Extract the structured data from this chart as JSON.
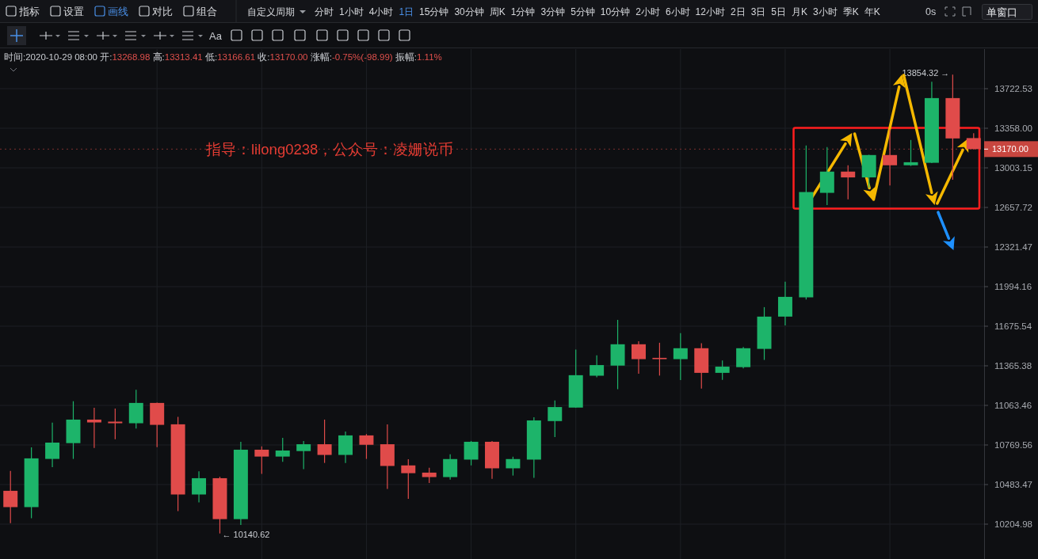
{
  "chart_data": {
    "type": "candlestick",
    "subtitle": "时间:2020-10-29 08:00 开:13268.98 高:13313.41 低:13166.61 收:13170.00 涨幅:-0.75%(-98.99) 振幅:1.11%",
    "categories": [
      null,
      null,
      null,
      null,
      null,
      null,
      null,
      null,
      null,
      null,
      null,
      null,
      null,
      null,
      null,
      null,
      null,
      null,
      null,
      null,
      null,
      null,
      null,
      null,
      null,
      null,
      null,
      null,
      null,
      null,
      null,
      null,
      null,
      null,
      null,
      null,
      null,
      null,
      null,
      null,
      null,
      null,
      null,
      null,
      null,
      null,
      null
    ],
    "ohlc": [
      [
        10439,
        10581,
        10212,
        10324
      ],
      [
        10324,
        10752,
        10246,
        10672
      ],
      [
        10668,
        10934,
        10609,
        10787
      ],
      [
        10783,
        11095,
        10668,
        10957
      ],
      [
        10957,
        11046,
        10748,
        10936
      ],
      [
        10942,
        11040,
        10812,
        10930
      ],
      [
        10930,
        11182,
        10891,
        11082
      ],
      [
        11082,
        11085,
        10754,
        10918
      ],
      [
        10922,
        10977,
        10296,
        10413
      ],
      [
        10413,
        10579,
        10357,
        10529
      ],
      [
        10529,
        10539,
        10140.62,
        10240
      ],
      [
        10240,
        10793,
        10199,
        10735
      ],
      [
        10735,
        10760,
        10560,
        10685
      ],
      [
        10685,
        10822,
        10647,
        10729
      ],
      [
        10725,
        10799,
        10594,
        10775
      ],
      [
        10775,
        10957,
        10639,
        10697
      ],
      [
        10697,
        10868,
        10639,
        10840
      ],
      [
        10840,
        10850,
        10668,
        10771
      ],
      [
        10775,
        10922,
        10452,
        10617
      ],
      [
        10621,
        10666,
        10383,
        10565
      ],
      [
        10569,
        10604,
        10495,
        10537
      ],
      [
        10537,
        10701,
        10519,
        10667
      ],
      [
        10663,
        10799,
        10621,
        10793
      ],
      [
        10793,
        10799,
        10525,
        10600
      ],
      [
        10600,
        10684,
        10548,
        10667
      ],
      [
        10663,
        10975,
        10531,
        10951
      ],
      [
        10946,
        11100,
        10828,
        11051
      ],
      [
        11047,
        11491,
        11045,
        11293
      ],
      [
        11289,
        11446,
        11277,
        11371
      ],
      [
        11367,
        11726,
        11186,
        11533
      ],
      [
        11533,
        11557,
        11305,
        11417
      ],
      [
        11427,
        11545,
        11290,
        11417
      ],
      [
        11417,
        11620,
        11255,
        11502
      ],
      [
        11502,
        11541,
        11190,
        11311
      ],
      [
        11311,
        11407,
        11257,
        11359
      ],
      [
        11355,
        11512,
        11345,
        11502
      ],
      [
        11497,
        11828,
        11411,
        11752
      ],
      [
        11752,
        12035,
        11682,
        11911
      ],
      [
        11907,
        13202,
        11890,
        12791
      ],
      [
        12784,
        13188,
        12678,
        12970
      ],
      [
        12970,
        13026,
        12727,
        12919
      ],
      [
        12919,
        13120,
        12829,
        13117
      ],
      [
        13117,
        13349,
        12849,
        13026
      ],
      [
        13026,
        13252,
        13020,
        13053
      ],
      [
        13048,
        13787,
        13045,
        13635
      ],
      [
        13635,
        13854.32,
        12898,
        13266
      ],
      [
        13268.98,
        13313.41,
        13166.61,
        13170.0
      ]
    ],
    "colors": [
      "#e04b4a",
      "#1db46a",
      "#1db46a",
      "#1db46a",
      "#e04b4a",
      "#e04b4a",
      "#1db46a",
      "#e04b4a",
      "#e04b4a",
      "#1db46a",
      "#e04b4a",
      "#1db46a",
      "#e04b4a",
      "#1db46a",
      "#1db46a",
      "#e04b4a",
      "#1db46a",
      "#e04b4a",
      "#e04b4a",
      "#e04b4a",
      "#e04b4a",
      "#1db46a",
      "#1db46a",
      "#e04b4a",
      "#1db46a",
      "#1db46a",
      "#1db46a",
      "#1db46a",
      "#1db46a",
      "#1db46a",
      "#e04b4a",
      "#e04b4a",
      "#1db46a",
      "#e04b4a",
      "#1db46a",
      "#1db46a",
      "#1db46a",
      "#1db46a",
      "#1db46a",
      "#1db46a",
      "#e04b4a",
      "#1db46a",
      "#e04b4a",
      "#1db46a",
      "#1db46a",
      "#e04b4a",
      "#e04b4a"
    ],
    "log": true,
    "ylim": [
      9966,
      14097
    ],
    "yticks": [
      {
        "value": 10204.98,
        "label": "10204.98"
      },
      {
        "value": 10483.47,
        "label": "10483.47"
      },
      {
        "value": 10769.56,
        "label": "10769.56"
      },
      {
        "value": 11063.46,
        "label": "11063.46"
      },
      {
        "value": 11365.38,
        "label": "11365.38"
      },
      {
        "value": 11675.54,
        "label": "11675.54"
      },
      {
        "value": 11994.16,
        "label": "11994.16"
      },
      {
        "value": 12321.47,
        "label": "12321.47"
      },
      {
        "value": 12657.72,
        "label": "12657.72"
      },
      {
        "value": 13003.15,
        "label": "13003.15"
      },
      {
        "value": 13358.0,
        "label": "13358.00"
      },
      {
        "value": 13722.53,
        "label": "13722.53"
      }
    ],
    "grid": true,
    "tick_labels": "y",
    "ref_lines": [
      {
        "axis": "y",
        "value": 13170.0,
        "label": "13170.00",
        "color": "#c8463f"
      }
    ],
    "annotations": [
      "指标",
      "设置",
      "画线",
      "对比",
      "组合",
      "自定义周期",
      "分时",
      "1小时",
      "4小时",
      "1日",
      "15分钟",
      "30分钟",
      "周K",
      "1分钟",
      "3分钟",
      "5分钟",
      "10分钟",
      "2小时",
      "6小时",
      "12小时",
      "2日",
      "3日",
      "5日",
      "月K",
      "3小时",
      "季K",
      "年K",
      "0s",
      "单窗口",
      "Aa",
      "指导：lilong0238，公众号：凌姗说币",
      "13854.32 →",
      "← 10140.62"
    ]
  }
}
